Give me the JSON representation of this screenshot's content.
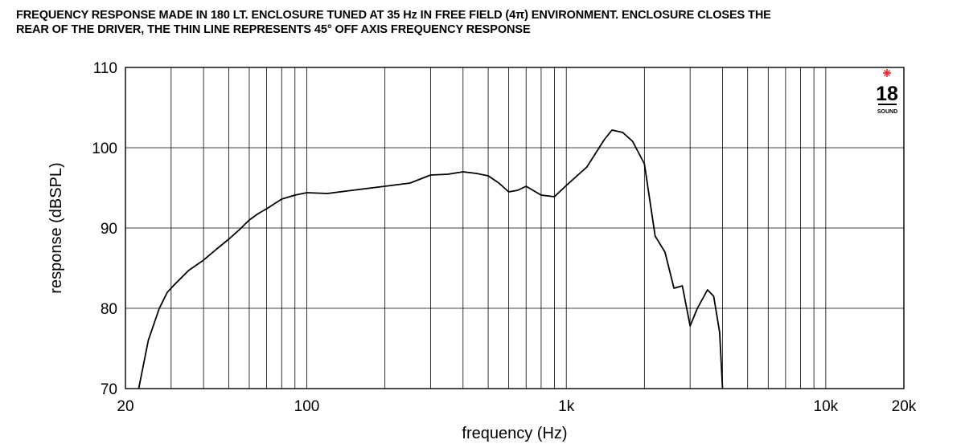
{
  "title_lines": [
    "FREQUENCY RESPONSE MADE IN 180 LT. ENCLOSURE TUNED AT 35 Hz IN FREE FIELD (4π) ENVIRONMENT. ENCLOSURE CLOSES THE",
    "REAR OF THE DRIVER, THE THIN LINE REPRESENTS 45° OFF AXIS FREQUENCY RESPONSE"
  ],
  "logo": {
    "text": "18",
    "subtext": "SOUND",
    "accent_color": "#e8262e"
  },
  "colors": {
    "line": "#000000",
    "grid": "#000000",
    "background": "#ffffff"
  },
  "chart_data": {
    "type": "line",
    "title": "",
    "xlabel": "frequency (Hz)",
    "ylabel": "response (dBSPL)",
    "x_scale": "log",
    "xlim": [
      20,
      20000
    ],
    "ylim": [
      70,
      110
    ],
    "x_ticks": [
      {
        "value": 20,
        "label": "20"
      },
      {
        "value": 100,
        "label": "100"
      },
      {
        "value": 1000,
        "label": "1k"
      },
      {
        "value": 10000,
        "label": "10k"
      },
      {
        "value": 20000,
        "label": "20k"
      }
    ],
    "y_ticks": [
      {
        "value": 70,
        "label": "70"
      },
      {
        "value": 80,
        "label": "80"
      },
      {
        "value": 90,
        "label": "90"
      },
      {
        "value": 100,
        "label": "100"
      },
      {
        "value": 110,
        "label": "110"
      }
    ],
    "grid": true,
    "series": [
      {
        "x": [
          22.5,
          24.5,
          27,
          29,
          31,
          35,
          40,
          45,
          50,
          55,
          60,
          65,
          70,
          80,
          90,
          100,
          120,
          150,
          200,
          250,
          300,
          350,
          400,
          450,
          500,
          550,
          600,
          650,
          700,
          800,
          900,
          1000,
          1200,
          1400,
          1500,
          1650,
          1800,
          2000,
          2200,
          2400,
          2600,
          2800,
          3000,
          3200,
          3500,
          3700,
          3900,
          4000
        ],
        "y": [
          70,
          76,
          80,
          82,
          83,
          84.7,
          86,
          87.4,
          88.6,
          89.8,
          91,
          91.8,
          92.4,
          93.6,
          94.1,
          94.4,
          94.3,
          94.7,
          95.2,
          95.6,
          96.6,
          96.7,
          97,
          96.8,
          96.5,
          95.6,
          94.5,
          94.7,
          95.2,
          94.1,
          93.9,
          95.3,
          97.6,
          101,
          102.2,
          101.9,
          100.8,
          98,
          89,
          87,
          82.5,
          82.8,
          77.8,
          80,
          82.3,
          81.5,
          77,
          70
        ]
      }
    ]
  }
}
